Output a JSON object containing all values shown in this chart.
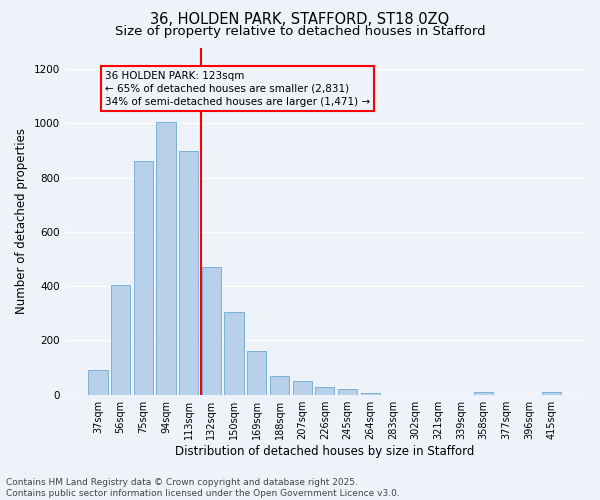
{
  "title_line1": "36, HOLDEN PARK, STAFFORD, ST18 0ZQ",
  "title_line2": "Size of property relative to detached houses in Stafford",
  "xlabel": "Distribution of detached houses by size in Stafford",
  "ylabel": "Number of detached properties",
  "categories": [
    "37sqm",
    "56sqm",
    "75sqm",
    "94sqm",
    "113sqm",
    "132sqm",
    "150sqm",
    "169sqm",
    "188sqm",
    "207sqm",
    "226sqm",
    "245sqm",
    "264sqm",
    "283sqm",
    "302sqm",
    "321sqm",
    "339sqm",
    "358sqm",
    "377sqm",
    "396sqm",
    "415sqm"
  ],
  "values": [
    90,
    405,
    860,
    1005,
    900,
    470,
    305,
    160,
    70,
    50,
    30,
    20,
    5,
    0,
    0,
    0,
    0,
    10,
    0,
    0,
    10
  ],
  "bar_color": "#b8d0ea",
  "bar_edge_color": "#6aaad4",
  "bar_width": 0.85,
  "vline_color": "red",
  "annotation_text": "36 HOLDEN PARK: 123sqm\n← 65% of detached houses are smaller (2,831)\n34% of semi-detached houses are larger (1,471) →",
  "annotation_box_color": "red",
  "ylim": [
    0,
    1280
  ],
  "yticks": [
    0,
    200,
    400,
    600,
    800,
    1000,
    1200
  ],
  "footer_line1": "Contains HM Land Registry data © Crown copyright and database right 2025.",
  "footer_line2": "Contains public sector information licensed under the Open Government Licence v3.0.",
  "bg_color": "#eef2f9",
  "grid_color": "#ffffff",
  "title_fontsize": 10.5,
  "subtitle_fontsize": 9.5,
  "label_fontsize": 8.5,
  "tick_fontsize": 7,
  "annot_fontsize": 7.5,
  "footer_fontsize": 6.5
}
